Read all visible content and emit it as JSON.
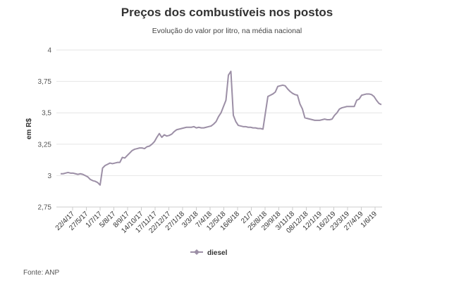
{
  "chart_data": {
    "type": "line",
    "title": "Preços dos combustíveis nos postos",
    "subtitle": "Evolução do valor por litro, na média nacional",
    "xlabel": "",
    "ylabel": "em R$",
    "ylim": [
      2.75,
      4
    ],
    "yticks": [
      "2,75",
      "3",
      "3,25",
      "3,5",
      "3,75",
      "4"
    ],
    "yticks_values": [
      2.75,
      3,
      3.25,
      3.5,
      3.75,
      4
    ],
    "xtick_labels": [
      "22/4/17",
      "27/5/17",
      "1/7/17",
      "5/8/17",
      "8/9/17",
      "14/10/17",
      "17/11/17",
      "22/12/17",
      "27/1/18",
      "3/3/18",
      "7/4/18",
      "12/5/18",
      "16/6/18",
      "21/7",
      "25/8/18",
      "29/9/18",
      "3/11/18",
      "08/12/18",
      "12/1/19",
      "16/2/19",
      "23/3/19",
      "27/4/19",
      "1/6/19"
    ],
    "grid": true,
    "legend_position": "bottom",
    "line_color": "#9c8fa6",
    "series": [
      {
        "name": "diesel",
        "values": [
          3.015,
          3.015,
          3.02,
          3.025,
          3.02,
          3.02,
          3.015,
          3.01,
          3.015,
          3.01,
          3.0,
          2.99,
          2.97,
          2.96,
          2.955,
          2.945,
          2.925,
          3.06,
          3.08,
          3.09,
          3.1,
          3.095,
          3.1,
          3.105,
          3.105,
          3.145,
          3.14,
          3.16,
          3.18,
          3.2,
          3.21,
          3.215,
          3.22,
          3.22,
          3.215,
          3.23,
          3.235,
          3.25,
          3.27,
          3.305,
          3.335,
          3.305,
          3.325,
          3.315,
          3.32,
          3.33,
          3.35,
          3.365,
          3.37,
          3.375,
          3.38,
          3.385,
          3.385,
          3.385,
          3.39,
          3.38,
          3.385,
          3.38,
          3.38,
          3.385,
          3.39,
          3.395,
          3.41,
          3.43,
          3.47,
          3.5,
          3.55,
          3.6,
          3.8,
          3.83,
          3.48,
          3.43,
          3.4,
          3.395,
          3.39,
          3.39,
          3.385,
          3.385,
          3.38,
          3.38,
          3.375,
          3.375,
          3.37,
          3.5,
          3.63,
          3.64,
          3.65,
          3.665,
          3.71,
          3.715,
          3.72,
          3.715,
          3.69,
          3.67,
          3.655,
          3.645,
          3.64,
          3.57,
          3.53,
          3.46,
          3.455,
          3.45,
          3.445,
          3.44,
          3.44,
          3.44,
          3.445,
          3.45,
          3.445,
          3.445,
          3.45,
          3.48,
          3.5,
          3.53,
          3.54,
          3.545,
          3.55,
          3.55,
          3.55,
          3.55,
          3.6,
          3.61,
          3.64,
          3.645,
          3.65,
          3.65,
          3.645,
          3.63,
          3.6,
          3.575,
          3.565
        ]
      }
    ]
  },
  "source": "Fonte: ANP"
}
